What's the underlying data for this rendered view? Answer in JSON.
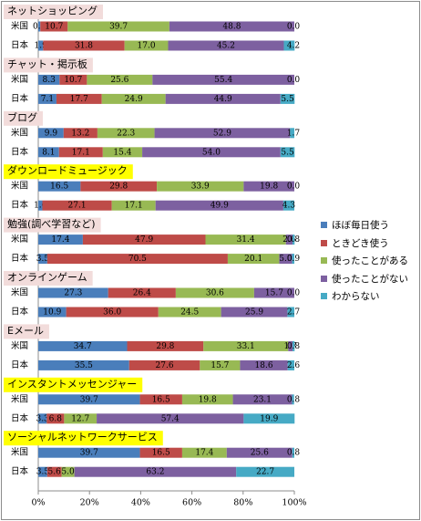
{
  "chart_data": {
    "type": "bar",
    "orientation": "horizontal",
    "stacked": "percent",
    "xlim": [
      0,
      100
    ],
    "x_ticks": [
      "0%",
      "20%",
      "40%",
      "60%",
      "80%",
      "100%"
    ],
    "grid": false,
    "legend_position": "right",
    "series": [
      {
        "name": "ほぼ毎日使う",
        "color": "#4a7ebb"
      },
      {
        "name": "ときどき使う",
        "color": "#be4b48"
      },
      {
        "name": "使ったことがある",
        "color": "#98b954"
      },
      {
        "name": "使ったことがない",
        "color": "#7d60a0"
      },
      {
        "name": "わからない",
        "color": "#46aac5"
      }
    ],
    "groups": [
      {
        "label": "ネットショッピング",
        "highlight": "#f2dcdb",
        "rows": [
          {
            "country": "米国",
            "values": [
              0.8,
              10.7,
              39.7,
              48.8,
              0.0
            ],
            "labels": [
              "0.8",
              "10.7",
              "39.7",
              "48.8",
              "0.0"
            ]
          },
          {
            "country": "日本",
            "values": [
              1.9,
              31.8,
              17.0,
              45.2,
              4.2
            ],
            "labels": [
              "1.9",
              "31.8",
              "17.0",
              "45.2",
              "4.2"
            ]
          }
        ]
      },
      {
        "label": "チャット・掲示板",
        "highlight": "#f2dcdb",
        "rows": [
          {
            "country": "米国",
            "values": [
              8.3,
              10.7,
              25.6,
              55.4,
              0.0
            ],
            "labels": [
              "8.3",
              "10.7",
              "25.6",
              "55.4",
              "0.0"
            ]
          },
          {
            "country": "日本",
            "values": [
              7.1,
              17.7,
              24.9,
              44.9,
              5.5
            ],
            "labels": [
              "7.1",
              "17.7",
              "24.9",
              "44.9",
              "5.5"
            ]
          }
        ]
      },
      {
        "label": "ブログ",
        "highlight": "#f2dcdb",
        "rows": [
          {
            "country": "米国",
            "values": [
              9.9,
              13.2,
              22.3,
              52.9,
              1.7
            ],
            "labels": [
              "9.9",
              "13.2",
              "22.3",
              "52.9",
              "1.7"
            ]
          },
          {
            "country": "日本",
            "values": [
              8.1,
              17.1,
              15.4,
              54.0,
              5.5
            ],
            "labels": [
              "8.1",
              "17.1",
              "15.4",
              "54.0",
              "5.5"
            ]
          }
        ]
      },
      {
        "label": "ダウンロードミュージック",
        "highlight": "#ffff00",
        "rows": [
          {
            "country": "米国",
            "values": [
              16.5,
              29.8,
              33.9,
              19.8,
              0.0
            ],
            "labels": [
              "16.5",
              "29.8",
              "33.9",
              "19.8",
              "0.0"
            ]
          },
          {
            "country": "日本",
            "values": [
              1.6,
              27.1,
              17.1,
              49.9,
              4.3
            ],
            "labels": [
              "1.6",
              "27.1",
              "17.1",
              "49.9",
              "4.3"
            ]
          }
        ]
      },
      {
        "label": "勉強(調べ学習など)",
        "highlight": "#f2dcdb",
        "rows": [
          {
            "country": "米国",
            "values": [
              17.4,
              47.9,
              31.4,
              2.6,
              0.8
            ],
            "labels": [
              "17.4",
              "47.9",
              "31.4",
              "2.6",
              "0.8"
            ]
          },
          {
            "country": "日本",
            "values": [
              3.5,
              70.5,
              20.1,
              5.0,
              0.9
            ],
            "labels": [
              "3.5",
              "70.5",
              "20.1",
              "5.0",
              "0.9"
            ]
          }
        ]
      },
      {
        "label": "オンラインゲーム",
        "highlight": "#f2dcdb",
        "rows": [
          {
            "country": "米国",
            "values": [
              27.3,
              26.4,
              30.6,
              15.7,
              0.0
            ],
            "labels": [
              "27.3",
              "26.4",
              "30.6",
              "15.7",
              "0.0"
            ]
          },
          {
            "country": "日本",
            "values": [
              10.9,
              36.0,
              24.5,
              25.9,
              2.7
            ],
            "labels": [
              "10.9",
              "36.0",
              "24.5",
              "25.9",
              "2.7"
            ]
          }
        ]
      },
      {
        "label": "Eメール",
        "highlight": "#f2dcdb",
        "rows": [
          {
            "country": "米国",
            "values": [
              34.7,
              29.8,
              33.1,
              1.7,
              0.8
            ],
            "labels": [
              "34.7",
              "29.8",
              "33.1",
              "1.7",
              "0.8"
            ]
          },
          {
            "country": "日本",
            "values": [
              35.5,
              27.6,
              15.7,
              18.6,
              2.6
            ],
            "labels": [
              "35.5",
              "27.6",
              "15.7",
              "18.6",
              "2.6"
            ]
          }
        ]
      },
      {
        "label": "インスタントメッセンジャー",
        "highlight": "#ffff00",
        "rows": [
          {
            "country": "米国",
            "values": [
              39.7,
              16.5,
              19.8,
              23.1,
              0.8
            ],
            "labels": [
              "39.7",
              "16.5",
              "19.8",
              "23.1",
              "0.8"
            ]
          },
          {
            "country": "日本",
            "values": [
              3.3,
              6.8,
              12.7,
              57.4,
              19.9
            ],
            "labels": [
              "3.3",
              "6.8",
              "12.7",
              "57.4",
              "19.9"
            ]
          }
        ]
      },
      {
        "label": "ソーシャルネットワークサービス",
        "highlight": "#ffff00",
        "rows": [
          {
            "country": "米国",
            "values": [
              39.7,
              16.5,
              17.4,
              25.6,
              0.8
            ],
            "labels": [
              "39.7",
              "16.5",
              "17.4",
              "25.6",
              "0.8"
            ]
          },
          {
            "country": "日本",
            "values": [
              3.5,
              5.6,
              5.0,
              63.2,
              22.7
            ],
            "labels": [
              "3.5",
              "5.6",
              "5.0",
              "63.2",
              "22.7"
            ]
          }
        ]
      }
    ]
  }
}
